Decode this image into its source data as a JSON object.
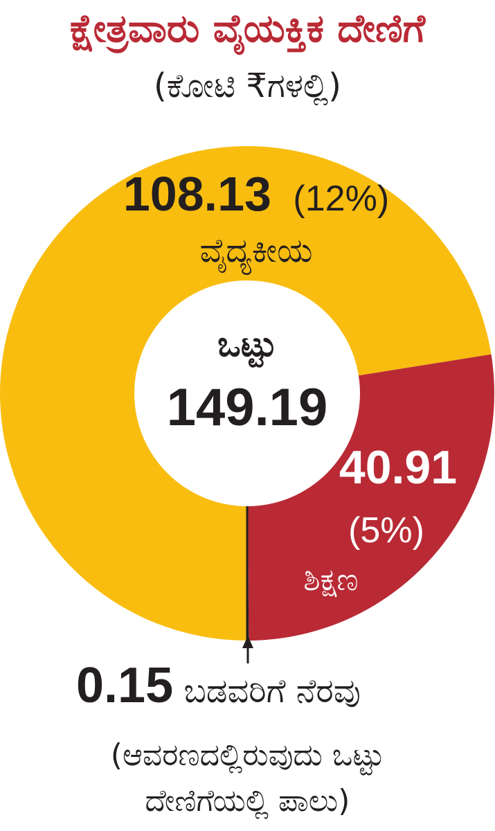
{
  "header": {
    "title": "ಕ್ಷೇತ್ರವಾರು ವೈಯಕ್ತಿಕ ದೇಣಿಗೆ",
    "subtitle": "(ಕೋಟಿ ₹ಗಳಲ್ಲಿ)"
  },
  "chart_data": {
    "type": "pie",
    "title": "ಕ್ಷೇತ್ರವಾರು ವೈಯಕ್ತಿಕ ದೇಣಿಗೆ",
    "subtitle": "(ಕೋಟಿ ₹ಗಳಲ್ಲಿ)",
    "donut": true,
    "center": {
      "label": "ಒಟ್ಟು",
      "value": "149.19",
      "total": 149.19
    },
    "slices": [
      {
        "name": "ವೈದ್ಯಕೀಯ",
        "value": 108.13,
        "value_label": "108.13",
        "percent_label": "(12%)",
        "color": "#f9bd10",
        "label_color": "#231f20"
      },
      {
        "name": "ಶಿಕ್ಷಣ",
        "value": 40.91,
        "value_label": "40.91",
        "percent_label": "(5%)",
        "color": "#b92a35",
        "label_color": "#ffffff"
      },
      {
        "name": "ಬಡವರಿಗೆ ನೆರವು",
        "value": 0.15,
        "value_label": "0.15",
        "percent_label": "",
        "color": "#231f20",
        "label_color": "#231f20"
      }
    ]
  },
  "footnote": {
    "value": "0.15",
    "label": "ಬಡವರಿಗೆ ನೆರವು",
    "note_line1": "(ಆವರಣದಲ್ಲಿರುವುದು ಒಟ್ಟು",
    "note_line2": "ದೇಣಿಗೆಯಲ್ಲಿ ಪಾಲು)"
  },
  "colors": {
    "title": "#b92a35",
    "medical": "#f9bd10",
    "education": "#b92a35",
    "text": "#231f20"
  }
}
